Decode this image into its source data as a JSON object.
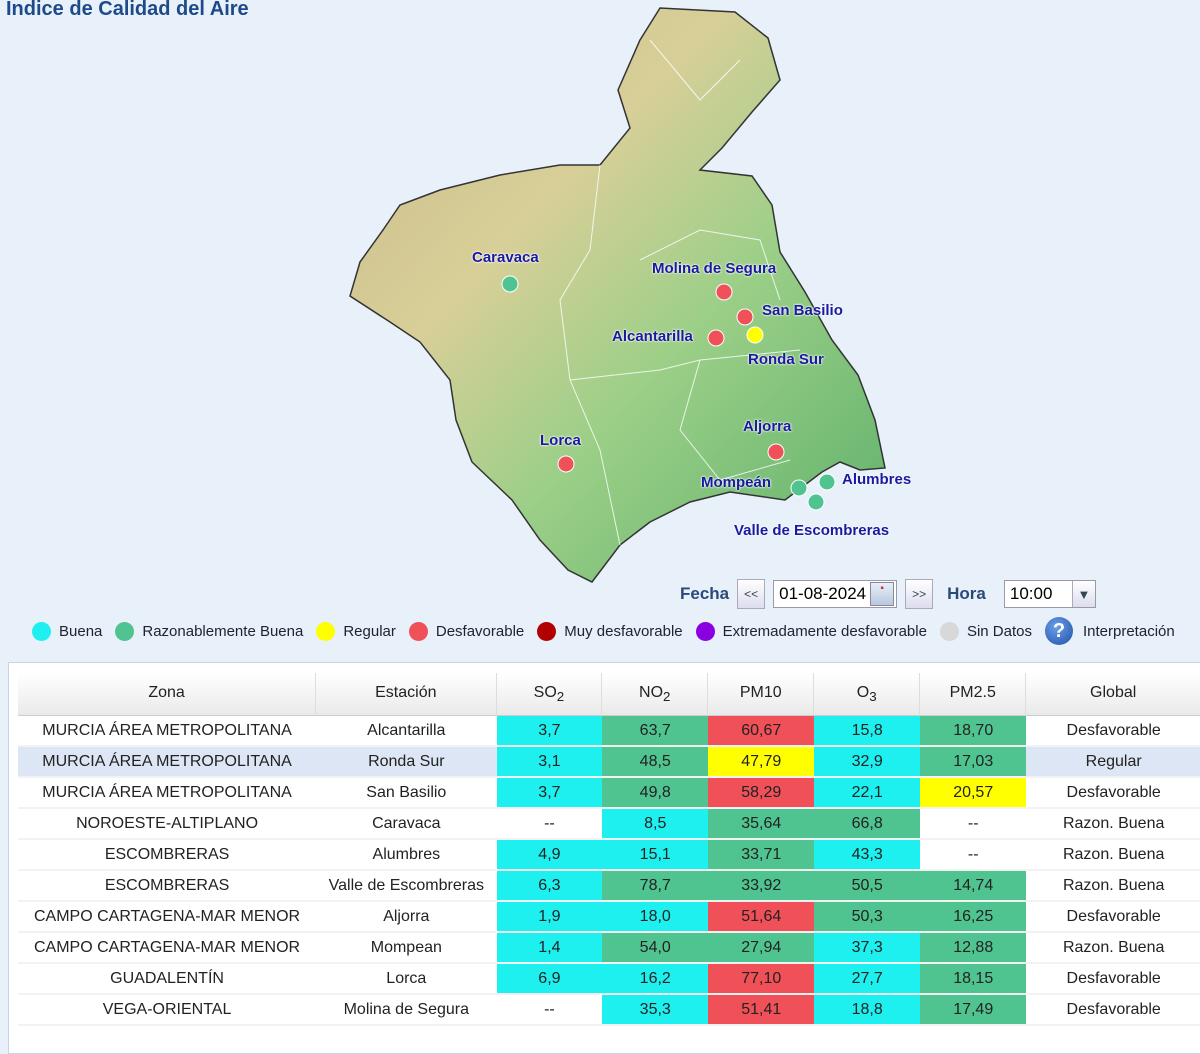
{
  "title": "Indice de Calidad del Aire",
  "colors": {
    "buena": "#1ef0f0",
    "razonable": "#50c490",
    "regular": "#ffff00",
    "desfavorable": "#f05058",
    "muy": "#b00000",
    "extrema": "#8a00e0",
    "sin": "#d8d8d8"
  },
  "map": {
    "stations": [
      {
        "name": "Caravaca",
        "level": "razonable"
      },
      {
        "name": "Molina de Segura",
        "level": "desfavorable"
      },
      {
        "name": "San Basilio",
        "level": "desfavorable"
      },
      {
        "name": "Alcantarilla",
        "level": "desfavorable"
      },
      {
        "name": "Ronda Sur",
        "level": "regular"
      },
      {
        "name": "Aljorra",
        "level": "desfavorable"
      },
      {
        "name": "Lorca",
        "level": "desfavorable"
      },
      {
        "name": "Mompeán",
        "level": "razonable"
      },
      {
        "name": "Alumbres",
        "level": "razonable"
      },
      {
        "name": "Valle de Escombreras",
        "level": "razonable"
      }
    ]
  },
  "controls": {
    "fecha_label": "Fecha",
    "prev": "<<",
    "date": "01-08-2024",
    "next": ">>",
    "hora_label": "Hora",
    "hora": "10:00"
  },
  "legend": [
    {
      "label": "Buena",
      "level": "buena"
    },
    {
      "label": "Razonablemente Buena",
      "level": "razonable"
    },
    {
      "label": "Regular",
      "level": "regular"
    },
    {
      "label": "Desfavorable",
      "level": "desfavorable"
    },
    {
      "label": "Muy desfavorable",
      "level": "muy"
    },
    {
      "label": "Extremadamente desfavorable",
      "level": "extrema"
    },
    {
      "label": "Sin Datos",
      "level": "sin"
    }
  ],
  "interpretacion": "Interpretación",
  "table": {
    "headers": [
      "Zona",
      "Estación",
      "SO",
      "NO",
      "PM10",
      "O",
      "PM2.5",
      "Global"
    ],
    "subs": [
      "",
      "",
      "2",
      "2",
      "",
      "3",
      "",
      ""
    ],
    "rows": [
      {
        "zona": "MURCIA ÁREA METROPOLITANA",
        "estacion": "Alcantarilla",
        "vals": [
          [
            "3,7",
            "buena"
          ],
          [
            "63,7",
            "razonable"
          ],
          [
            "60,67",
            "desfavorable"
          ],
          [
            "15,8",
            "buena"
          ],
          [
            "18,70",
            "razonable"
          ]
        ],
        "global": "Desfavorable"
      },
      {
        "zona": "MURCIA ÁREA METROPOLITANA",
        "estacion": "Ronda Sur",
        "vals": [
          [
            "3,1",
            "buena"
          ],
          [
            "48,5",
            "razonable"
          ],
          [
            "47,79",
            "regular"
          ],
          [
            "32,9",
            "buena"
          ],
          [
            "17,03",
            "razonable"
          ]
        ],
        "global": "Regular"
      },
      {
        "zona": "MURCIA ÁREA METROPOLITANA",
        "estacion": "San Basilio",
        "vals": [
          [
            "3,7",
            "buena"
          ],
          [
            "49,8",
            "razonable"
          ],
          [
            "58,29",
            "desfavorable"
          ],
          [
            "22,1",
            "buena"
          ],
          [
            "20,57",
            "regular"
          ]
        ],
        "global": "Desfavorable"
      },
      {
        "zona": "NOROESTE-ALTIPLANO",
        "estacion": "Caravaca",
        "vals": [
          [
            "--",
            ""
          ],
          [
            "8,5",
            "buena"
          ],
          [
            "35,64",
            "razonable"
          ],
          [
            "66,8",
            "razonable"
          ],
          [
            "--",
            ""
          ]
        ],
        "global": "Razon. Buena"
      },
      {
        "zona": "ESCOMBRERAS",
        "estacion": "Alumbres",
        "vals": [
          [
            "4,9",
            "buena"
          ],
          [
            "15,1",
            "buena"
          ],
          [
            "33,71",
            "razonable"
          ],
          [
            "43,3",
            "buena"
          ],
          [
            "--",
            ""
          ]
        ],
        "global": "Razon. Buena"
      },
      {
        "zona": "ESCOMBRERAS",
        "estacion": "Valle de Escombreras",
        "vals": [
          [
            "6,3",
            "buena"
          ],
          [
            "78,7",
            "razonable"
          ],
          [
            "33,92",
            "razonable"
          ],
          [
            "50,5",
            "razonable"
          ],
          [
            "14,74",
            "razonable"
          ]
        ],
        "global": "Razon. Buena"
      },
      {
        "zona": "CAMPO CARTAGENA-MAR MENOR",
        "estacion": "Aljorra",
        "vals": [
          [
            "1,9",
            "buena"
          ],
          [
            "18,0",
            "buena"
          ],
          [
            "51,64",
            "desfavorable"
          ],
          [
            "50,3",
            "razonable"
          ],
          [
            "16,25",
            "razonable"
          ]
        ],
        "global": "Desfavorable"
      },
      {
        "zona": "CAMPO CARTAGENA-MAR MENOR",
        "estacion": "Mompean",
        "vals": [
          [
            "1,4",
            "buena"
          ],
          [
            "54,0",
            "razonable"
          ],
          [
            "27,94",
            "razonable"
          ],
          [
            "37,3",
            "buena"
          ],
          [
            "12,88",
            "razonable"
          ]
        ],
        "global": "Razon. Buena"
      },
      {
        "zona": "GUADALENTÍN",
        "estacion": "Lorca",
        "vals": [
          [
            "6,9",
            "buena"
          ],
          [
            "16,2",
            "buena"
          ],
          [
            "77,10",
            "desfavorable"
          ],
          [
            "27,7",
            "buena"
          ],
          [
            "18,15",
            "razonable"
          ]
        ],
        "global": "Desfavorable"
      },
      {
        "zona": "VEGA-ORIENTAL",
        "estacion": "Molina de Segura",
        "vals": [
          [
            "--",
            ""
          ],
          [
            "35,3",
            "buena"
          ],
          [
            "51,41",
            "desfavorable"
          ],
          [
            "18,8",
            "buena"
          ],
          [
            "17,49",
            "razonable"
          ]
        ],
        "global": "Desfavorable"
      }
    ]
  }
}
